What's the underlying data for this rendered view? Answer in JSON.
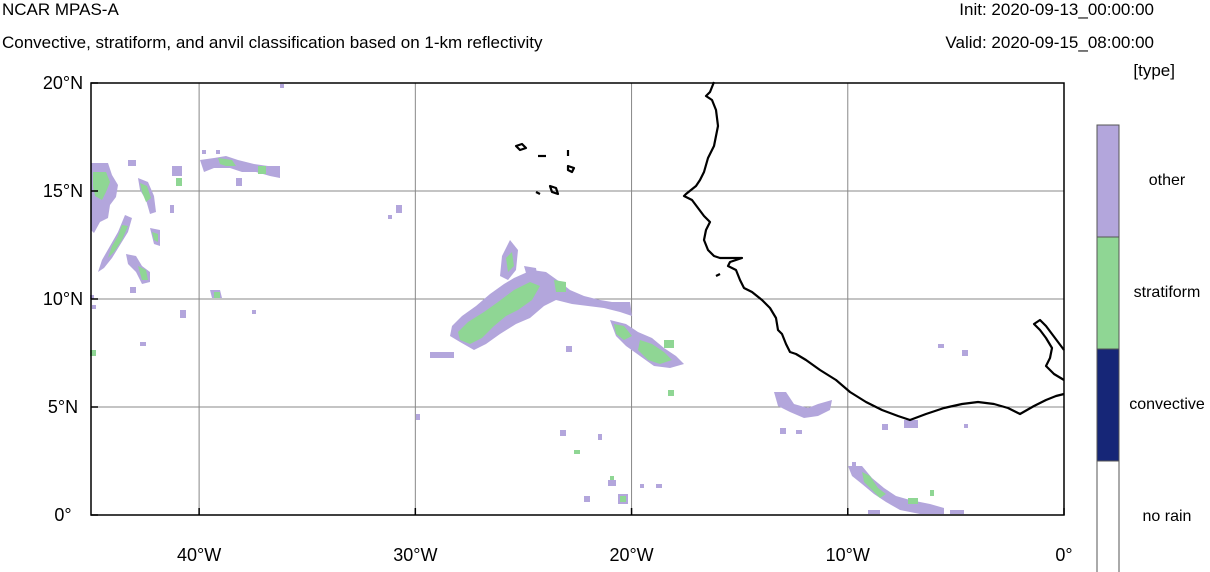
{
  "header": {
    "title": "NCAR MPAS-A",
    "subtitle": "Convective, stratiform, and anvil classification based on 1-km reflectivity",
    "init": "Init: 2020-09-13_00:00:00",
    "valid": "Valid: 2020-09-15_08:00:00",
    "units": "[type]"
  },
  "map": {
    "lon_range": [
      -45,
      0
    ],
    "lat_range": [
      0,
      20
    ],
    "lat_ticks": [
      {
        "value": 20,
        "label": "20°N"
      },
      {
        "value": 15,
        "label": "15°N"
      },
      {
        "value": 10,
        "label": "10°N"
      },
      {
        "value": 5,
        "label": "5°N"
      },
      {
        "value": 0,
        "label": "0°"
      }
    ],
    "lon_ticks": [
      {
        "value": -40,
        "label": "40°W"
      },
      {
        "value": -30,
        "label": "30°W"
      },
      {
        "value": -20,
        "label": "20°W"
      },
      {
        "value": -10,
        "label": "10°W"
      },
      {
        "value": 0,
        "label": "0°"
      }
    ],
    "gridlines_lon": [
      -40,
      -30,
      -20,
      -10
    ],
    "gridlines_lat": [
      15,
      10,
      5
    ],
    "coastline_color": "#000000",
    "gridline_color": "#888888"
  },
  "colorbar": {
    "categories": [
      {
        "label": "other",
        "color": "#b3a6dc"
      },
      {
        "label": "stratiform",
        "color": "#8fd694"
      },
      {
        "label": "convective",
        "color": "#162677"
      },
      {
        "label": "no rain",
        "color": "#ffffff"
      }
    ]
  }
}
